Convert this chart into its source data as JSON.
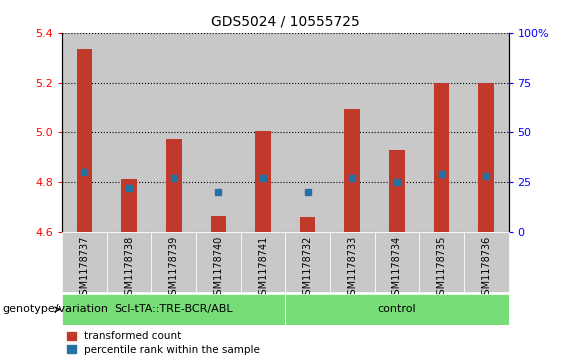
{
  "title": "GDS5024 / 10555725",
  "samples": [
    "GSM1178737",
    "GSM1178738",
    "GSM1178739",
    "GSM1178740",
    "GSM1178741",
    "GSM1178732",
    "GSM1178733",
    "GSM1178734",
    "GSM1178735",
    "GSM1178736"
  ],
  "transformed_counts": [
    5.335,
    4.815,
    4.975,
    4.665,
    5.005,
    4.66,
    5.095,
    4.93,
    5.2,
    5.2
  ],
  "percentile_ranks": [
    30,
    22,
    27,
    20,
    27,
    20,
    27,
    25,
    29,
    28
  ],
  "ylim_left": [
    4.6,
    5.4
  ],
  "ylim_right": [
    0,
    100
  ],
  "yticks_left": [
    4.6,
    4.8,
    5.0,
    5.2,
    5.4
  ],
  "yticks_right": [
    0,
    25,
    50,
    75,
    100
  ],
  "ytick_labels_right": [
    "0",
    "25",
    "50",
    "75",
    "100%"
  ],
  "group1_label": "ScI-tTA::TRE-BCR/ABL",
  "group2_label": "control",
  "group1_count": 5,
  "group2_count": 5,
  "bar_color": "#C0392B",
  "dot_color": "#2471A3",
  "group_bg": "#77DD77",
  "sample_bg": "#C8C8C8",
  "legend_red_label": "transformed count",
  "legend_blue_label": "percentile rank within the sample",
  "xlabel_left": "genotype/variation",
  "bar_width": 0.35,
  "base_value": 4.6,
  "fig_width": 5.65,
  "fig_height": 3.63
}
